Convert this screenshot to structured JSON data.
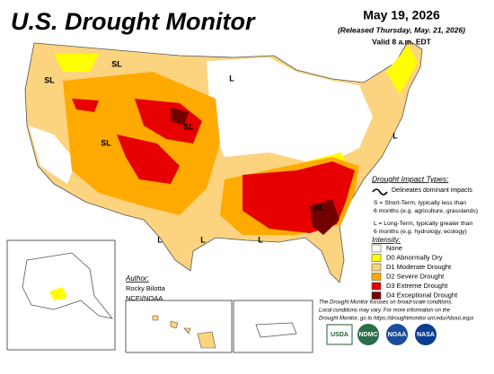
{
  "header": {
    "title": "U.S. Drought Monitor",
    "date": "May 19, 2026",
    "released": "(Released Thursday, May. 21, 2026)",
    "valid": "Valid 8 a.m. EDT"
  },
  "impact": {
    "title": "Drought Impact Types:",
    "delineates": "Delineates dominant impacts",
    "short_term": [
      "S = Short-Term, typically less than",
      "6 months (e.g. agriculture, grasslands)"
    ],
    "long_term": [
      "L = Long-Term, typically greater than",
      "6 months (e.g. hydrology, ecology)"
    ]
  },
  "intensity": {
    "title": "Intensity:",
    "items": [
      {
        "label": "None",
        "color": "#ffffff"
      },
      {
        "label": "D0 Abnormally Dry",
        "color": "#ffff00"
      },
      {
        "label": "D1 Moderate Drought",
        "color": "#fcd37f"
      },
      {
        "label": "D2 Severe Drought",
        "color": "#ffaa00"
      },
      {
        "label": "D3 Extreme Drought",
        "color": "#e60000"
      },
      {
        "label": "D4 Exceptional Drought",
        "color": "#730000"
      }
    ]
  },
  "author": {
    "title": "Author:",
    "name": "Rocky Bilotta",
    "org": "NCEI/NOAA"
  },
  "footer": [
    "The Drought Monitor focuses on broad-scale conditions.",
    "Local conditions may vary. For more information on the",
    "Drought Monitor, go to https://droughtmonitor.unl.edu/About.aspx"
  ],
  "map_labels": [
    "SL",
    "SL",
    "L",
    "SL",
    "SL",
    "L",
    "SL",
    "L",
    "L",
    "L"
  ],
  "logos": [
    "USDA",
    "NDMC",
    "NOAA",
    "NASA"
  ]
}
